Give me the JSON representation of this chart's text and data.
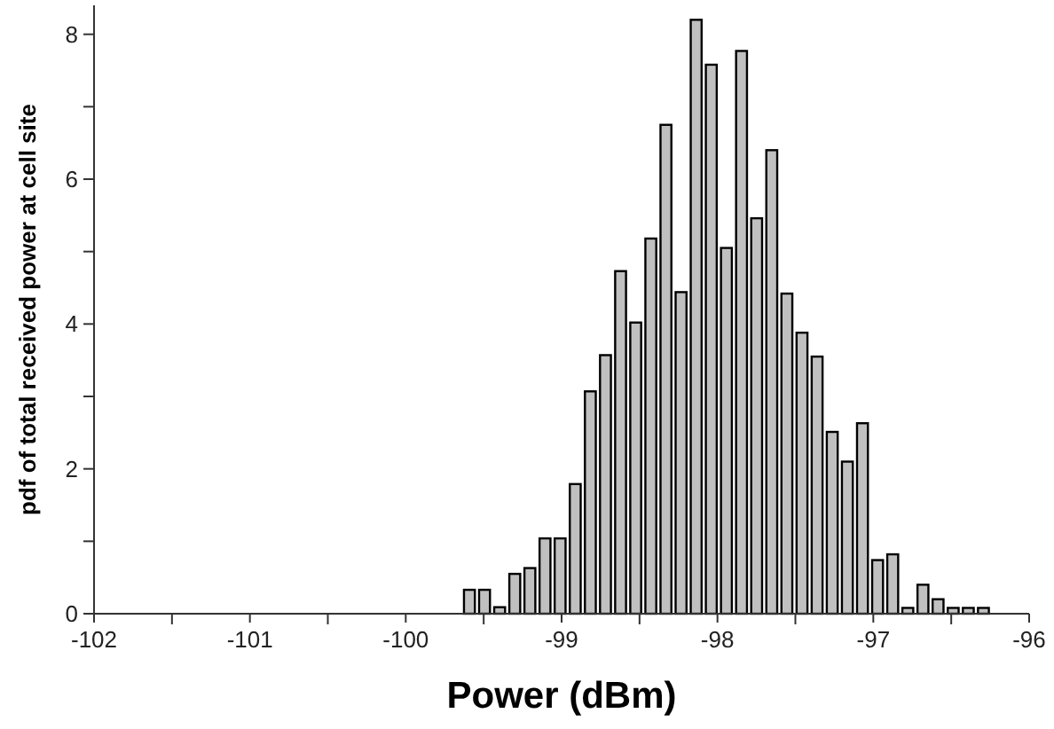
{
  "chart_data": {
    "type": "histogram",
    "xlabel": "Power (dBm)",
    "ylabel": "pdf of total received power at cell site",
    "bins": [
      -99.64,
      -99.543,
      -99.446,
      -99.349,
      -99.252,
      -99.155,
      -99.058,
      -98.961,
      -98.864,
      -98.767,
      -98.67,
      -98.573,
      -98.476,
      -98.379,
      -98.282,
      -98.185,
      -98.088,
      -97.991,
      -97.894,
      -97.797,
      -97.7,
      -97.603,
      -97.506,
      -97.409,
      -97.312,
      -97.215,
      -97.118,
      -97.021,
      -96.924,
      -96.827,
      -96.73,
      -96.633,
      -96.536,
      -96.439,
      -96.342,
      -96.245
    ],
    "values": [
      0.33,
      0.33,
      0.09,
      0.55,
      0.63,
      1.04,
      1.04,
      1.79,
      3.07,
      3.57,
      4.73,
      4.02,
      5.18,
      6.75,
      4.44,
      8.2,
      7.58,
      5.05,
      7.77,
      5.46,
      6.4,
      4.42,
      3.88,
      3.55,
      2.51,
      2.1,
      2.63,
      0.74,
      0.82,
      0.08,
      0.4,
      0.2,
      0.08,
      0.08,
      0.08
    ],
    "color": "#c0c0c0",
    "xlim": [
      -102,
      -96
    ],
    "xticks": [
      -102,
      {
        "value": -101.5,
        "label": null
      },
      -101,
      {
        "value": -100.5,
        "label": null
      },
      -100,
      {
        "value": -99.5,
        "label": null
      },
      -99,
      {
        "value": -98.5,
        "label": null
      },
      -98,
      {
        "value": -97.5,
        "label": null
      },
      -97,
      {
        "value": -96.5,
        "label": null
      },
      -96
    ],
    "ylim": [
      0,
      8.4
    ],
    "yticks": [
      0,
      {
        "value": 1,
        "label": null
      },
      2,
      {
        "value": 3,
        "label": null
      },
      4,
      {
        "value": 5,
        "label": null
      },
      6,
      {
        "value": 7,
        "label": null
      },
      8
    ],
    "grid": false
  }
}
